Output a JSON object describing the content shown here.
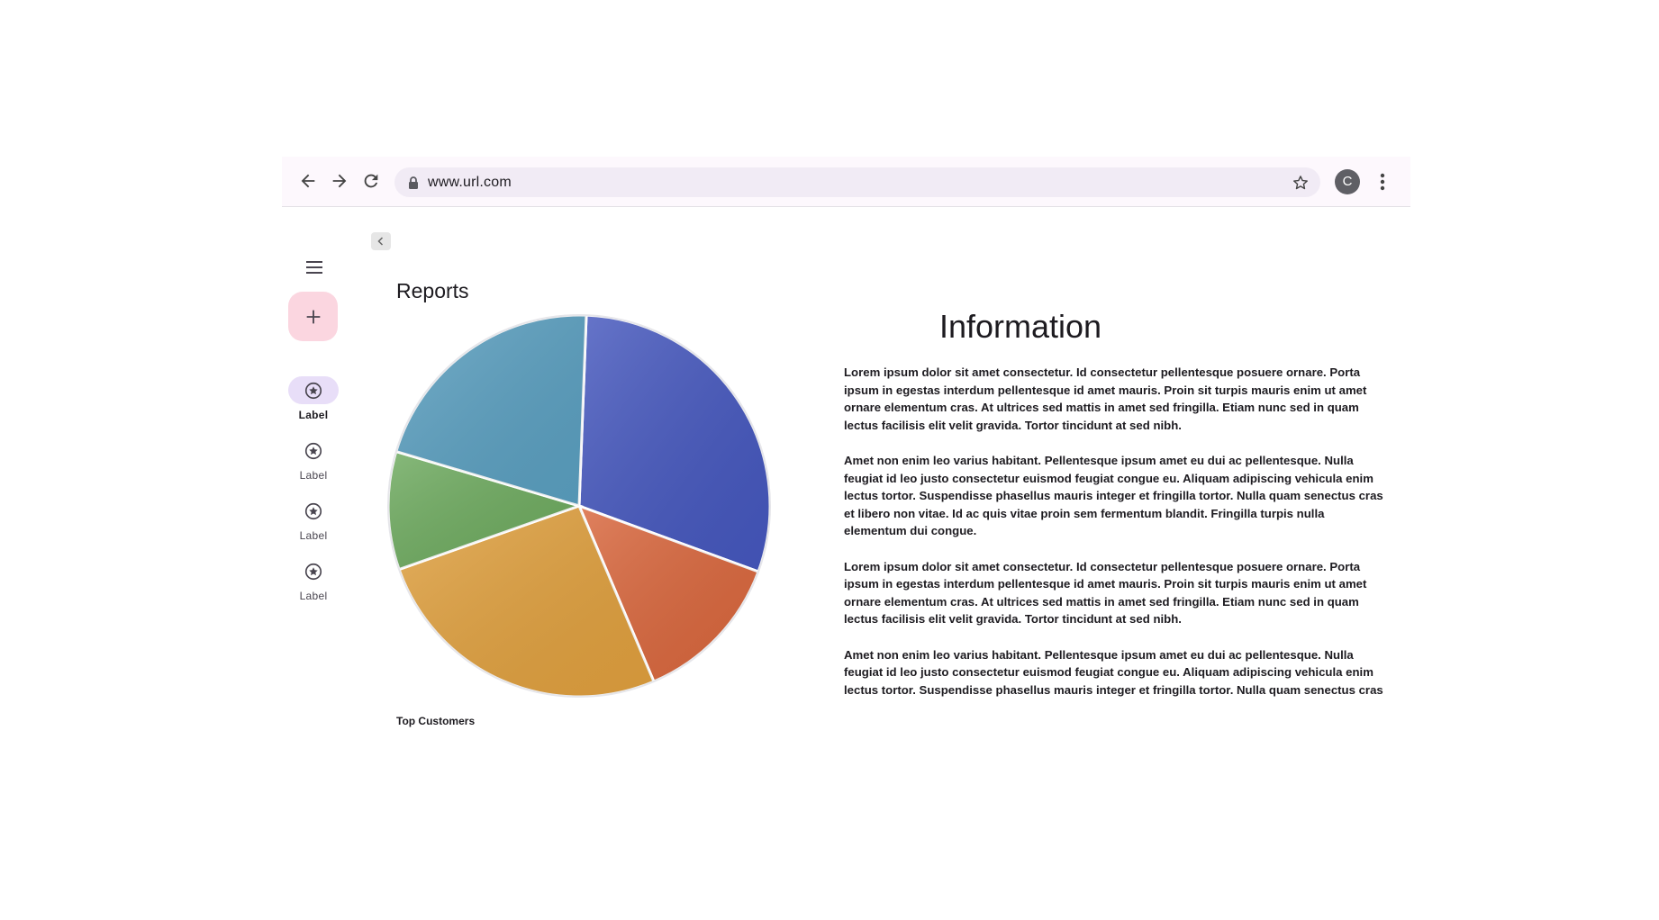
{
  "browser": {
    "url": "www.url.com",
    "profile_initial": "C",
    "icons": {
      "back": "arrow-back-icon",
      "forward": "arrow-forward-icon",
      "reload": "reload-icon",
      "lock": "lock-icon",
      "bookmark": "star-outline-icon",
      "menu": "more-vert-icon"
    }
  },
  "rail": {
    "menu_icon": "hamburger-menu-icon",
    "fab_icon": "plus-icon",
    "items": [
      {
        "label": "Label",
        "icon": "star-circle-icon",
        "active": true
      },
      {
        "label": "Label",
        "icon": "star-circle-icon",
        "active": false
      },
      {
        "label": "Label",
        "icon": "star-circle-icon",
        "active": false
      },
      {
        "label": "Label",
        "icon": "star-circle-icon",
        "active": false
      }
    ]
  },
  "reports": {
    "title": "Reports",
    "caption": "Top Customers"
  },
  "chart_data": {
    "type": "pie",
    "title": "",
    "legend": "none",
    "slices": [
      {
        "value": 30,
        "color": "#4557be"
      },
      {
        "value": 13,
        "color": "#d9663c"
      },
      {
        "value": 26,
        "color": "#e0a03e"
      },
      {
        "value": 10,
        "color": "#6daa5e"
      },
      {
        "value": 21,
        "color": "#5a9fc0"
      }
    ]
  },
  "information": {
    "title": "Information",
    "paragraphs": [
      "Lorem ipsum dolor sit amet consectetur. Id consectetur pellentesque posuere ornare. Porta ipsum in egestas interdum pellentesque id amet mauris. Proin sit turpis mauris enim ut amet ornare elementum cras. At ultrices sed mattis in amet sed fringilla. Etiam nunc sed in quam lectus facilisis elit velit gravida. Tortor tincidunt at sed nibh.",
      "Amet non enim leo varius habitant. Pellentesque ipsum amet eu dui ac pellentesque. Nulla feugiat id leo justo consectetur euismod feugiat congue eu. Aliquam adipiscing vehicula enim lectus tortor. Suspendisse phasellus mauris integer et fringilla tortor. Nulla quam senectus cras et libero non vitae. Id ac quis vitae proin sem fermentum blandit. Fringilla turpis nulla elementum dui congue.",
      "Lorem ipsum dolor sit amet consectetur. Id consectetur pellentesque posuere ornare. Porta ipsum in egestas interdum pellentesque id amet mauris. Proin sit turpis mauris enim ut amet ornare elementum cras. At ultrices sed mattis in amet sed fringilla. Etiam nunc sed in quam lectus facilisis elit velit gravida. Tortor tincidunt at sed nibh.",
      "Amet non enim leo varius habitant. Pellentesque ipsum amet eu dui ac pellentesque. Nulla feugiat id leo justo consectetur euismod feugiat congue eu. Aliquam adipiscing vehicula enim lectus tortor. Suspendisse phasellus mauris integer et fringilla tortor. Nulla quam senectus cras"
    ]
  },
  "colors": {
    "toolbar_bg": "#fdf8fd",
    "omnibox_bg": "#f1ebf5",
    "fab_bg": "#fbd6e0",
    "active_pill": "#e8def8"
  }
}
